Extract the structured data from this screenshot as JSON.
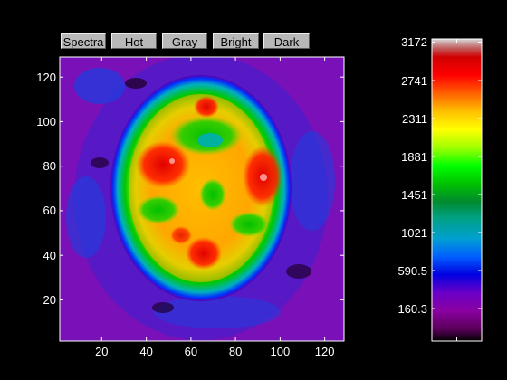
{
  "toolbar": {
    "buttons": [
      "Spectra",
      "Hot",
      "Gray",
      "Bright",
      "Dark"
    ]
  },
  "image_axes": {
    "x_ticks": [
      "20",
      "40",
      "60",
      "80",
      "100",
      "120"
    ],
    "y_ticks": [
      "120",
      "100",
      "80",
      "60",
      "40",
      "20"
    ]
  },
  "colorbar": {
    "colormap": "spectral",
    "tick_labels": [
      "3172",
      "2741",
      "2311",
      "1881",
      "1451",
      "1021",
      "590.5",
      "160.3"
    ]
  },
  "colors": {
    "background": "#000000",
    "axis": "#ffffff",
    "button_face": "#b8b8b8"
  }
}
